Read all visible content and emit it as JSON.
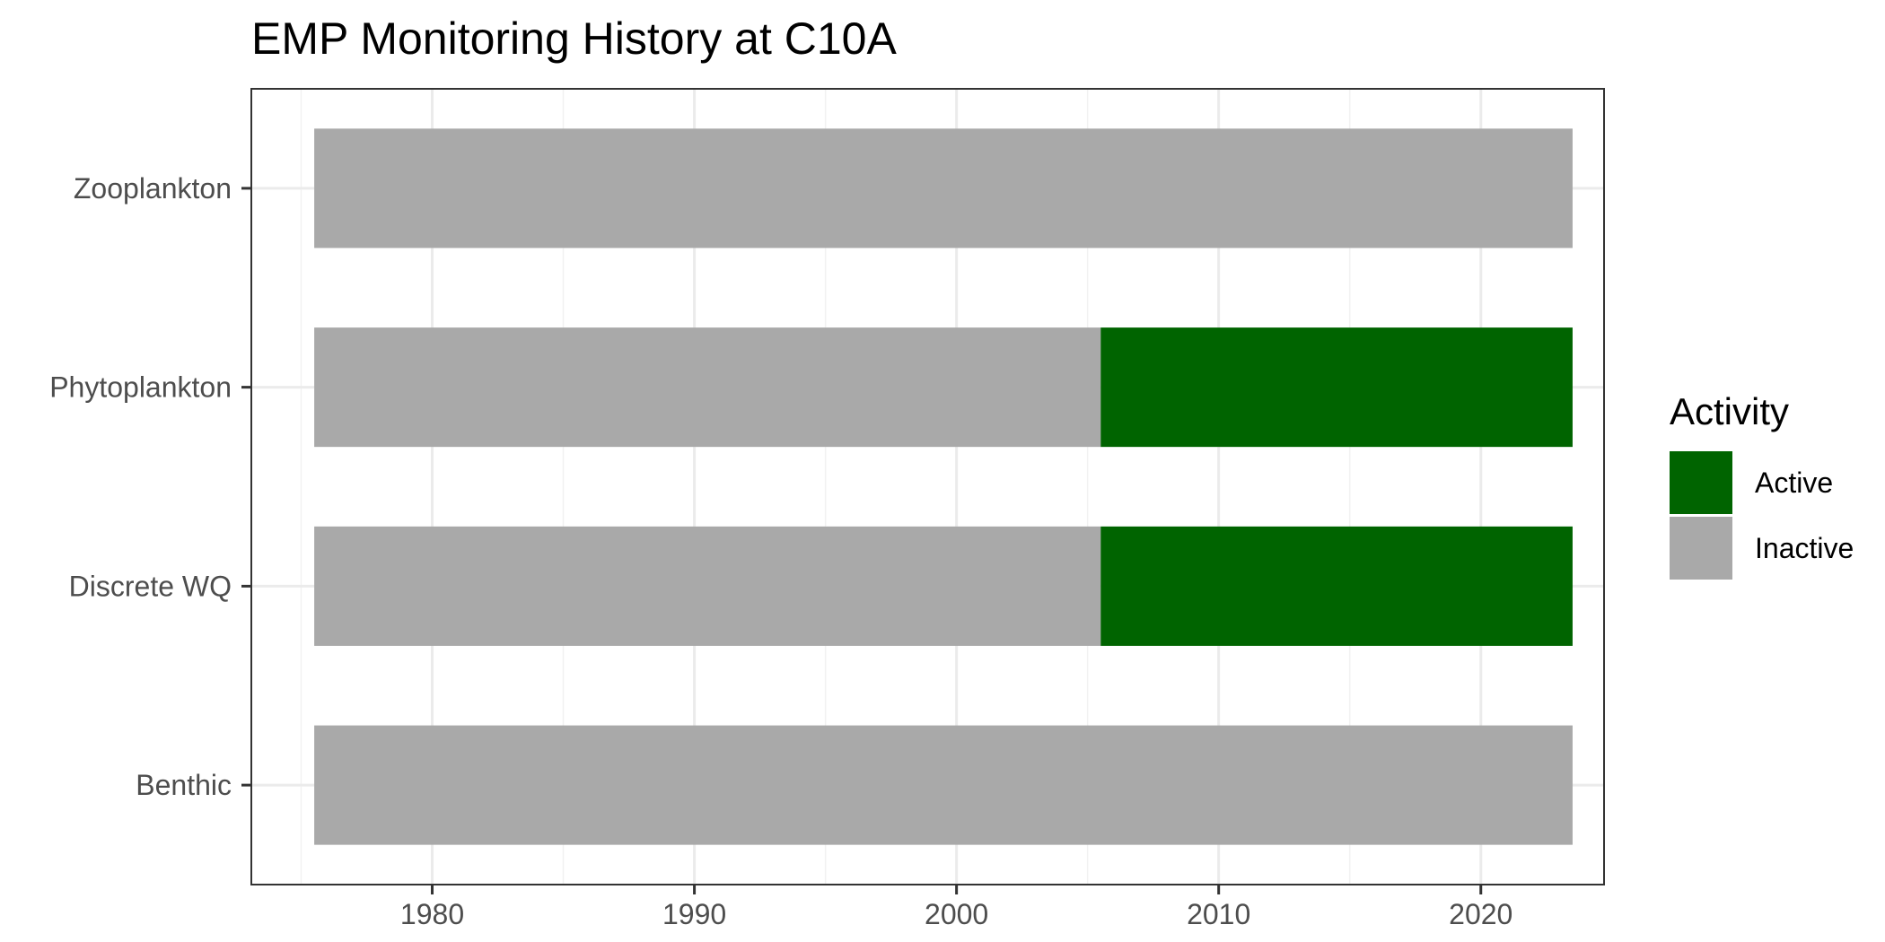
{
  "chart_data": {
    "type": "bar",
    "orientation": "horizontal",
    "stacked": true,
    "title": "EMP Monitoring History at C10A",
    "xlabel": "",
    "ylabel": "",
    "xlim": [
      1973.1,
      2024.7
    ],
    "x_ticks": [
      1980,
      1990,
      2000,
      2010,
      2020
    ],
    "grid": true,
    "legend_position": "right",
    "legend": {
      "title": "Activity",
      "entries": [
        {
          "label": "Active",
          "color": "#006400"
        },
        {
          "label": "Inactive",
          "color": "#A9A9A9"
        }
      ]
    },
    "categories": [
      "Zooplankton",
      "Phytoplankton",
      "Discrete WQ",
      "Benthic"
    ],
    "segments": [
      {
        "category": "Zooplankton",
        "activity": "Inactive",
        "start": 1975.5,
        "end": 2023.5
      },
      {
        "category": "Phytoplankton",
        "activity": "Inactive",
        "start": 1975.5,
        "end": 2005.5
      },
      {
        "category": "Phytoplankton",
        "activity": "Active",
        "start": 2005.5,
        "end": 2023.5
      },
      {
        "category": "Discrete WQ",
        "activity": "Inactive",
        "start": 1975.5,
        "end": 2005.5
      },
      {
        "category": "Discrete WQ",
        "activity": "Active",
        "start": 2005.5,
        "end": 2023.5
      },
      {
        "category": "Benthic",
        "activity": "Inactive",
        "start": 1975.5,
        "end": 2023.5
      }
    ]
  }
}
